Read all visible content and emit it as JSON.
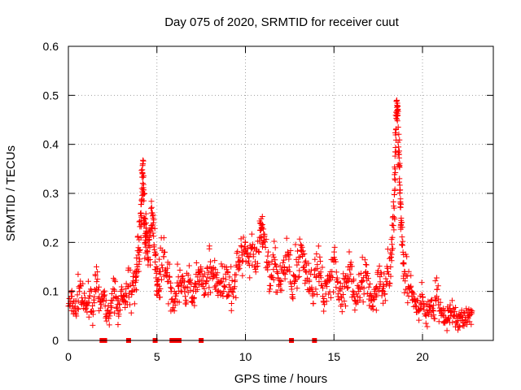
{
  "chart_data": {
    "type": "scatter",
    "title": "Day 075 of 2020, SRMTID for receiver cuut",
    "xlabel": "GPS time / hours",
    "ylabel": "SRMTID / TECUs",
    "xlim": [
      0,
      24
    ],
    "ylim": [
      0,
      0.6
    ],
    "grid": true,
    "marker": "+",
    "color": "#ff0000",
    "xticks": [
      0,
      5,
      10,
      15,
      20
    ],
    "xtick_labels": [
      "0",
      "5",
      "10",
      "15",
      "20"
    ],
    "yticks": [
      0,
      0.1,
      0.2,
      0.3,
      0.4,
      0.5,
      0.6
    ],
    "ytick_labels": [
      "0",
      "0.1",
      "0.2",
      "0.3",
      "0.4",
      "0.5",
      "0.6"
    ],
    "series": [
      {
        "name": "SRMTID",
        "x": [
          0.0,
          0.2,
          0.4,
          0.6,
          0.8,
          1.0,
          1.2,
          1.4,
          1.6,
          1.8,
          2.0,
          2.2,
          2.4,
          2.6,
          2.8,
          3.0,
          3.2,
          3.4,
          3.6,
          3.8,
          3.9,
          4.0,
          4.1,
          4.15,
          4.2,
          4.25,
          4.3,
          4.35,
          4.4,
          4.5,
          4.6,
          4.7,
          4.8,
          4.9,
          5.0,
          5.1,
          5.2,
          5.4,
          5.6,
          5.8,
          6.0,
          6.2,
          6.4,
          6.6,
          6.8,
          7.0,
          7.2,
          7.4,
          7.6,
          7.8,
          8.0,
          8.2,
          8.4,
          8.6,
          8.8,
          9.0,
          9.2,
          9.4,
          9.6,
          9.8,
          10.0,
          10.2,
          10.4,
          10.6,
          10.8,
          10.9,
          11.0,
          11.2,
          11.4,
          11.6,
          11.8,
          12.0,
          12.2,
          12.4,
          12.6,
          12.8,
          13.0,
          13.2,
          13.4,
          13.6,
          13.8,
          14.0,
          14.2,
          14.4,
          14.6,
          14.8,
          15.0,
          15.2,
          15.4,
          15.6,
          15.8,
          16.0,
          16.2,
          16.4,
          16.6,
          16.8,
          17.0,
          17.2,
          17.4,
          17.6,
          17.8,
          18.0,
          18.2,
          18.3,
          18.4,
          18.45,
          18.5,
          18.55,
          18.6,
          18.65,
          18.7,
          18.75,
          18.8,
          18.9,
          19.0,
          19.2,
          19.4,
          19.6,
          19.8,
          20.0,
          20.2,
          20.4,
          20.6,
          20.8,
          21.0,
          21.2,
          21.4,
          21.6,
          21.8,
          22.0,
          22.2,
          22.4,
          22.6,
          22.8
        ],
        "y": [
          0.07,
          0.09,
          0.06,
          0.11,
          0.08,
          0.07,
          0.1,
          0.06,
          0.12,
          0.08,
          0.09,
          0.05,
          0.07,
          0.1,
          0.06,
          0.09,
          0.08,
          0.11,
          0.1,
          0.13,
          0.15,
          0.18,
          0.26,
          0.31,
          0.36,
          0.3,
          0.24,
          0.2,
          0.22,
          0.17,
          0.19,
          0.26,
          0.24,
          0.16,
          0.12,
          0.1,
          0.14,
          0.18,
          0.12,
          0.1,
          0.08,
          0.11,
          0.13,
          0.09,
          0.12,
          0.08,
          0.1,
          0.14,
          0.11,
          0.12,
          0.15,
          0.13,
          0.1,
          0.12,
          0.11,
          0.14,
          0.1,
          0.12,
          0.15,
          0.18,
          0.2,
          0.17,
          0.19,
          0.15,
          0.21,
          0.23,
          0.2,
          0.16,
          0.13,
          0.17,
          0.14,
          0.12,
          0.15,
          0.18,
          0.11,
          0.13,
          0.16,
          0.19,
          0.14,
          0.12,
          0.1,
          0.13,
          0.17,
          0.08,
          0.11,
          0.14,
          0.16,
          0.12,
          0.09,
          0.11,
          0.15,
          0.12,
          0.08,
          0.1,
          0.12,
          0.14,
          0.09,
          0.07,
          0.11,
          0.13,
          0.1,
          0.12,
          0.15,
          0.21,
          0.27,
          0.35,
          0.43,
          0.49,
          0.47,
          0.38,
          0.33,
          0.28,
          0.24,
          0.18,
          0.14,
          0.11,
          0.09,
          0.07,
          0.06,
          0.08,
          0.05,
          0.07,
          0.06,
          0.09,
          0.06,
          0.05,
          0.04,
          0.06,
          0.05,
          0.04,
          0.05,
          0.04,
          0.05,
          0.06
        ],
        "ydisp": [
          0.021,
          0.03,
          0.021,
          0.03,
          0.021,
          0.021,
          0.03,
          0.021,
          0.03,
          0.021,
          0.021,
          0.015,
          0.021,
          0.03,
          0.021,
          0.021,
          0.021,
          0.03,
          0.03,
          0.035,
          0.035,
          0.04,
          0.04,
          0.04,
          0.008,
          0.04,
          0.04,
          0.035,
          0.035,
          0.035,
          0.035,
          0.03,
          0.03,
          0.035,
          0.03,
          0.03,
          0.035,
          0.035,
          0.03,
          0.03,
          0.021,
          0.03,
          0.035,
          0.021,
          0.035,
          0.021,
          0.03,
          0.035,
          0.03,
          0.035,
          0.04,
          0.035,
          0.03,
          0.035,
          0.03,
          0.035,
          0.03,
          0.03,
          0.035,
          0.04,
          0.035,
          0.035,
          0.035,
          0.035,
          0.035,
          0.021,
          0.035,
          0.035,
          0.035,
          0.035,
          0.035,
          0.03,
          0.035,
          0.035,
          0.03,
          0.035,
          0.035,
          0.035,
          0.035,
          0.035,
          0.03,
          0.035,
          0.035,
          0.021,
          0.03,
          0.035,
          0.035,
          0.035,
          0.03,
          0.03,
          0.035,
          0.035,
          0.021,
          0.03,
          0.035,
          0.035,
          0.03,
          0.021,
          0.03,
          0.035,
          0.03,
          0.035,
          0.035,
          0.04,
          0.04,
          0.04,
          0.04,
          0.025,
          0.03,
          0.04,
          0.05,
          0.04,
          0.04,
          0.04,
          0.035,
          0.035,
          0.03,
          0.021,
          0.021,
          0.03,
          0.021,
          0.021,
          0.021,
          0.03,
          0.021,
          0.015,
          0.015,
          0.021,
          0.015,
          0.015,
          0.015,
          0.015,
          0.015,
          0.021
        ]
      }
    ],
    "zero_markers_x": [
      1.9,
      2.05,
      3.4,
      4.9,
      5.85,
      6.1,
      6.25,
      7.5,
      12.6,
      13.9
    ]
  }
}
